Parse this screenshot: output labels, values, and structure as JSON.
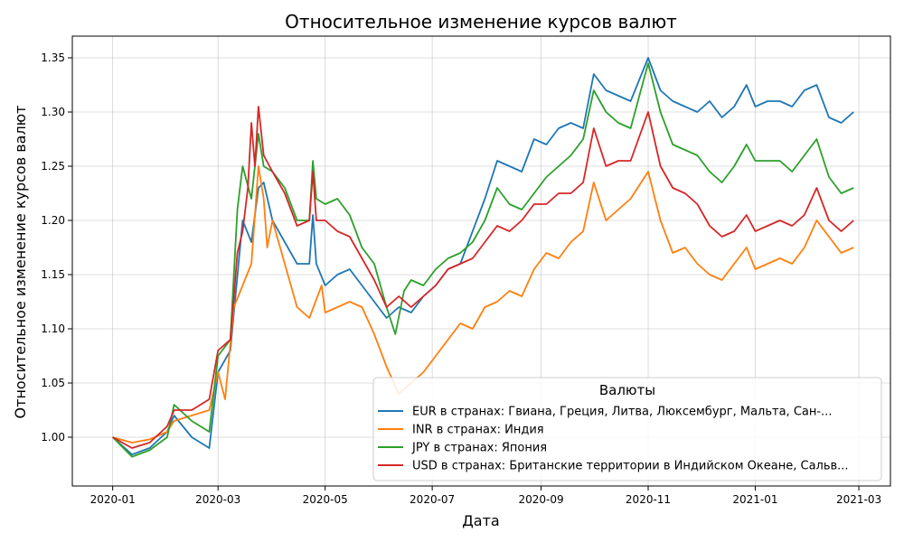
{
  "chart_data": {
    "type": "line",
    "title": "Относительное изменение курсов валют",
    "xlabel": "Дата",
    "ylabel": "Относительное изменение курсов валют",
    "xlim": [
      "2019-12-09",
      "2021-03-19"
    ],
    "ylim": [
      0.955,
      1.37
    ],
    "x_ticks": [
      "2020-01-01",
      "2020-03-01",
      "2020-05-01",
      "2020-07-01",
      "2020-09-01",
      "2020-11-01",
      "2021-01-01",
      "2021-03-01"
    ],
    "x_tick_labels": [
      "2020-01",
      "2020-03",
      "2020-05",
      "2020-07",
      "2020-09",
      "2020-11",
      "2021-01",
      "2021-03"
    ],
    "y_ticks": [
      1.0,
      1.05,
      1.1,
      1.15,
      1.2,
      1.25,
      1.3,
      1.35
    ],
    "y_tick_labels": [
      "1.00",
      "1.05",
      "1.10",
      "1.15",
      "1.20",
      "1.25",
      "1.30",
      "1.35"
    ],
    "grid": true,
    "legend": {
      "title": "Валюты",
      "placement": "lower-right"
    },
    "series": [
      {
        "name": "EUR в странах: Гвиана, Греция, Литва, Люксембург, Мальта, Сан-...",
        "color": "#1f77b4",
        "points": [
          [
            "2020-01-01",
            1.0
          ],
          [
            "2020-01-12",
            0.984
          ],
          [
            "2020-01-22",
            0.99
          ],
          [
            "2020-02-01",
            1.005
          ],
          [
            "2020-02-05",
            1.02
          ],
          [
            "2020-02-15",
            1.0
          ],
          [
            "2020-02-25",
            0.99
          ],
          [
            "2020-03-01",
            1.06
          ],
          [
            "2020-03-08",
            1.08
          ],
          [
            "2020-03-15",
            1.2
          ],
          [
            "2020-03-20",
            1.18
          ],
          [
            "2020-03-24",
            1.23
          ],
          [
            "2020-03-27",
            1.235
          ],
          [
            "2020-04-01",
            1.2
          ],
          [
            "2020-04-08",
            1.18
          ],
          [
            "2020-04-15",
            1.16
          ],
          [
            "2020-04-22",
            1.16
          ],
          [
            "2020-04-24",
            1.205
          ],
          [
            "2020-04-26",
            1.16
          ],
          [
            "2020-05-01",
            1.14
          ],
          [
            "2020-05-08",
            1.15
          ],
          [
            "2020-05-15",
            1.155
          ],
          [
            "2020-05-22",
            1.14
          ],
          [
            "2020-05-29",
            1.125
          ],
          [
            "2020-06-05",
            1.11
          ],
          [
            "2020-06-12",
            1.12
          ],
          [
            "2020-06-19",
            1.115
          ],
          [
            "2020-06-26",
            1.13
          ],
          [
            "2020-07-03",
            1.14
          ],
          [
            "2020-07-10",
            1.155
          ],
          [
            "2020-07-17",
            1.16
          ],
          [
            "2020-07-24",
            1.19
          ],
          [
            "2020-07-31",
            1.22
          ],
          [
            "2020-08-07",
            1.255
          ],
          [
            "2020-08-14",
            1.25
          ],
          [
            "2020-08-21",
            1.245
          ],
          [
            "2020-08-28",
            1.275
          ],
          [
            "2020-09-04",
            1.27
          ],
          [
            "2020-09-11",
            1.285
          ],
          [
            "2020-09-18",
            1.29
          ],
          [
            "2020-09-25",
            1.285
          ],
          [
            "2020-10-01",
            1.335
          ],
          [
            "2020-10-08",
            1.32
          ],
          [
            "2020-10-15",
            1.315
          ],
          [
            "2020-10-22",
            1.31
          ],
          [
            "2020-11-01",
            1.35
          ],
          [
            "2020-11-08",
            1.32
          ],
          [
            "2020-11-15",
            1.31
          ],
          [
            "2020-11-22",
            1.305
          ],
          [
            "2020-11-29",
            1.3
          ],
          [
            "2020-12-06",
            1.31
          ],
          [
            "2020-12-13",
            1.295
          ],
          [
            "2020-12-20",
            1.305
          ],
          [
            "2020-12-27",
            1.325
          ],
          [
            "2021-01-01",
            1.305
          ],
          [
            "2021-01-08",
            1.31
          ],
          [
            "2021-01-15",
            1.31
          ],
          [
            "2021-01-22",
            1.305
          ],
          [
            "2021-01-29",
            1.32
          ],
          [
            "2021-02-05",
            1.325
          ],
          [
            "2021-02-12",
            1.295
          ],
          [
            "2021-02-19",
            1.29
          ],
          [
            "2021-02-26",
            1.3
          ]
        ]
      },
      {
        "name": "INR в странах: Индия",
        "color": "#ff7f0e",
        "points": [
          [
            "2020-01-01",
            1.0
          ],
          [
            "2020-01-12",
            0.995
          ],
          [
            "2020-01-22",
            0.998
          ],
          [
            "2020-02-01",
            1.005
          ],
          [
            "2020-02-05",
            1.015
          ],
          [
            "2020-02-15",
            1.02
          ],
          [
            "2020-02-25",
            1.025
          ],
          [
            "2020-03-01",
            1.06
          ],
          [
            "2020-03-05",
            1.035
          ],
          [
            "2020-03-10",
            1.12
          ],
          [
            "2020-03-15",
            1.14
          ],
          [
            "2020-03-20",
            1.16
          ],
          [
            "2020-03-24",
            1.25
          ],
          [
            "2020-03-27",
            1.22
          ],
          [
            "2020-03-29",
            1.175
          ],
          [
            "2020-04-01",
            1.2
          ],
          [
            "2020-04-08",
            1.16
          ],
          [
            "2020-04-15",
            1.12
          ],
          [
            "2020-04-22",
            1.11
          ],
          [
            "2020-04-29",
            1.14
          ],
          [
            "2020-05-01",
            1.115
          ],
          [
            "2020-05-08",
            1.12
          ],
          [
            "2020-05-15",
            1.125
          ],
          [
            "2020-05-22",
            1.12
          ],
          [
            "2020-05-29",
            1.095
          ],
          [
            "2020-06-05",
            1.065
          ],
          [
            "2020-06-12",
            1.04
          ],
          [
            "2020-06-19",
            1.05
          ],
          [
            "2020-06-26",
            1.06
          ],
          [
            "2020-07-03",
            1.075
          ],
          [
            "2020-07-10",
            1.09
          ],
          [
            "2020-07-17",
            1.105
          ],
          [
            "2020-07-24",
            1.1
          ],
          [
            "2020-07-31",
            1.12
          ],
          [
            "2020-08-07",
            1.125
          ],
          [
            "2020-08-14",
            1.135
          ],
          [
            "2020-08-21",
            1.13
          ],
          [
            "2020-08-28",
            1.155
          ],
          [
            "2020-09-04",
            1.17
          ],
          [
            "2020-09-11",
            1.165
          ],
          [
            "2020-09-18",
            1.18
          ],
          [
            "2020-09-25",
            1.19
          ],
          [
            "2020-10-01",
            1.235
          ],
          [
            "2020-10-08",
            1.2
          ],
          [
            "2020-10-15",
            1.21
          ],
          [
            "2020-10-22",
            1.22
          ],
          [
            "2020-11-01",
            1.245
          ],
          [
            "2020-11-08",
            1.2
          ],
          [
            "2020-11-15",
            1.17
          ],
          [
            "2020-11-22",
            1.175
          ],
          [
            "2020-11-29",
            1.16
          ],
          [
            "2020-12-06",
            1.15
          ],
          [
            "2020-12-13",
            1.145
          ],
          [
            "2020-12-20",
            1.16
          ],
          [
            "2020-12-27",
            1.175
          ],
          [
            "2021-01-01",
            1.155
          ],
          [
            "2021-01-08",
            1.16
          ],
          [
            "2021-01-15",
            1.165
          ],
          [
            "2021-01-22",
            1.16
          ],
          [
            "2021-01-29",
            1.175
          ],
          [
            "2021-02-05",
            1.2
          ],
          [
            "2021-02-12",
            1.185
          ],
          [
            "2021-02-19",
            1.17
          ],
          [
            "2021-02-26",
            1.175
          ]
        ]
      },
      {
        "name": "JPY в странах: Япония",
        "color": "#2ca02c",
        "points": [
          [
            "2020-01-01",
            1.0
          ],
          [
            "2020-01-12",
            0.982
          ],
          [
            "2020-01-22",
            0.988
          ],
          [
            "2020-02-01",
            1.0
          ],
          [
            "2020-02-05",
            1.03
          ],
          [
            "2020-02-15",
            1.015
          ],
          [
            "2020-02-25",
            1.005
          ],
          [
            "2020-03-01",
            1.075
          ],
          [
            "2020-03-08",
            1.09
          ],
          [
            "2020-03-12",
            1.21
          ],
          [
            "2020-03-15",
            1.25
          ],
          [
            "2020-03-20",
            1.22
          ],
          [
            "2020-03-24",
            1.28
          ],
          [
            "2020-03-27",
            1.25
          ],
          [
            "2020-04-01",
            1.245
          ],
          [
            "2020-04-08",
            1.23
          ],
          [
            "2020-04-15",
            1.2
          ],
          [
            "2020-04-22",
            1.2
          ],
          [
            "2020-04-24",
            1.255
          ],
          [
            "2020-04-26",
            1.22
          ],
          [
            "2020-05-01",
            1.215
          ],
          [
            "2020-05-08",
            1.22
          ],
          [
            "2020-05-15",
            1.205
          ],
          [
            "2020-05-22",
            1.175
          ],
          [
            "2020-05-29",
            1.16
          ],
          [
            "2020-06-05",
            1.12
          ],
          [
            "2020-06-10",
            1.095
          ],
          [
            "2020-06-15",
            1.135
          ],
          [
            "2020-06-19",
            1.145
          ],
          [
            "2020-06-26",
            1.14
          ],
          [
            "2020-07-03",
            1.155
          ],
          [
            "2020-07-10",
            1.165
          ],
          [
            "2020-07-17",
            1.17
          ],
          [
            "2020-07-24",
            1.18
          ],
          [
            "2020-07-31",
            1.2
          ],
          [
            "2020-08-07",
            1.23
          ],
          [
            "2020-08-14",
            1.215
          ],
          [
            "2020-08-21",
            1.21
          ],
          [
            "2020-08-28",
            1.225
          ],
          [
            "2020-09-04",
            1.24
          ],
          [
            "2020-09-11",
            1.25
          ],
          [
            "2020-09-18",
            1.26
          ],
          [
            "2020-09-25",
            1.275
          ],
          [
            "2020-10-01",
            1.32
          ],
          [
            "2020-10-08",
            1.3
          ],
          [
            "2020-10-15",
            1.29
          ],
          [
            "2020-10-22",
            1.285
          ],
          [
            "2020-11-01",
            1.345
          ],
          [
            "2020-11-08",
            1.3
          ],
          [
            "2020-11-15",
            1.27
          ],
          [
            "2020-11-22",
            1.265
          ],
          [
            "2020-11-29",
            1.26
          ],
          [
            "2020-12-06",
            1.245
          ],
          [
            "2020-12-13",
            1.235
          ],
          [
            "2020-12-20",
            1.25
          ],
          [
            "2020-12-27",
            1.27
          ],
          [
            "2021-01-01",
            1.255
          ],
          [
            "2021-01-08",
            1.255
          ],
          [
            "2021-01-15",
            1.255
          ],
          [
            "2021-01-22",
            1.245
          ],
          [
            "2021-01-29",
            1.26
          ],
          [
            "2021-02-05",
            1.275
          ],
          [
            "2021-02-12",
            1.24
          ],
          [
            "2021-02-19",
            1.225
          ],
          [
            "2021-02-26",
            1.23
          ]
        ]
      },
      {
        "name": "USD в странах: Британские территории в Индийском Океане, Сальв...",
        "color": "#d62728",
        "points": [
          [
            "2020-01-01",
            1.0
          ],
          [
            "2020-01-12",
            0.99
          ],
          [
            "2020-01-22",
            0.995
          ],
          [
            "2020-02-01",
            1.01
          ],
          [
            "2020-02-05",
            1.025
          ],
          [
            "2020-02-15",
            1.025
          ],
          [
            "2020-02-25",
            1.035
          ],
          [
            "2020-03-01",
            1.08
          ],
          [
            "2020-03-08",
            1.09
          ],
          [
            "2020-03-12",
            1.17
          ],
          [
            "2020-03-15",
            1.19
          ],
          [
            "2020-03-18",
            1.23
          ],
          [
            "2020-03-20",
            1.29
          ],
          [
            "2020-03-22",
            1.25
          ],
          [
            "2020-03-24",
            1.305
          ],
          [
            "2020-03-27",
            1.26
          ],
          [
            "2020-04-01",
            1.245
          ],
          [
            "2020-04-08",
            1.225
          ],
          [
            "2020-04-15",
            1.195
          ],
          [
            "2020-04-22",
            1.2
          ],
          [
            "2020-04-24",
            1.245
          ],
          [
            "2020-04-26",
            1.2
          ],
          [
            "2020-05-01",
            1.2
          ],
          [
            "2020-05-08",
            1.19
          ],
          [
            "2020-05-15",
            1.185
          ],
          [
            "2020-05-22",
            1.165
          ],
          [
            "2020-05-29",
            1.145
          ],
          [
            "2020-06-05",
            1.12
          ],
          [
            "2020-06-12",
            1.13
          ],
          [
            "2020-06-19",
            1.12
          ],
          [
            "2020-06-26",
            1.13
          ],
          [
            "2020-07-03",
            1.14
          ],
          [
            "2020-07-10",
            1.155
          ],
          [
            "2020-07-17",
            1.16
          ],
          [
            "2020-07-24",
            1.165
          ],
          [
            "2020-07-31",
            1.18
          ],
          [
            "2020-08-07",
            1.195
          ],
          [
            "2020-08-14",
            1.19
          ],
          [
            "2020-08-21",
            1.2
          ],
          [
            "2020-08-28",
            1.215
          ],
          [
            "2020-09-04",
            1.215
          ],
          [
            "2020-09-11",
            1.225
          ],
          [
            "2020-09-18",
            1.225
          ],
          [
            "2020-09-25",
            1.235
          ],
          [
            "2020-10-01",
            1.285
          ],
          [
            "2020-10-08",
            1.25
          ],
          [
            "2020-10-15",
            1.255
          ],
          [
            "2020-10-22",
            1.255
          ],
          [
            "2020-11-01",
            1.3
          ],
          [
            "2020-11-08",
            1.25
          ],
          [
            "2020-11-15",
            1.23
          ],
          [
            "2020-11-22",
            1.225
          ],
          [
            "2020-11-29",
            1.215
          ],
          [
            "2020-12-06",
            1.195
          ],
          [
            "2020-12-13",
            1.185
          ],
          [
            "2020-12-20",
            1.19
          ],
          [
            "2020-12-27",
            1.205
          ],
          [
            "2021-01-01",
            1.19
          ],
          [
            "2021-01-08",
            1.195
          ],
          [
            "2021-01-15",
            1.2
          ],
          [
            "2021-01-22",
            1.195
          ],
          [
            "2021-01-29",
            1.205
          ],
          [
            "2021-02-05",
            1.23
          ],
          [
            "2021-02-12",
            1.2
          ],
          [
            "2021-02-19",
            1.19
          ],
          [
            "2021-02-26",
            1.2
          ]
        ]
      }
    ]
  }
}
